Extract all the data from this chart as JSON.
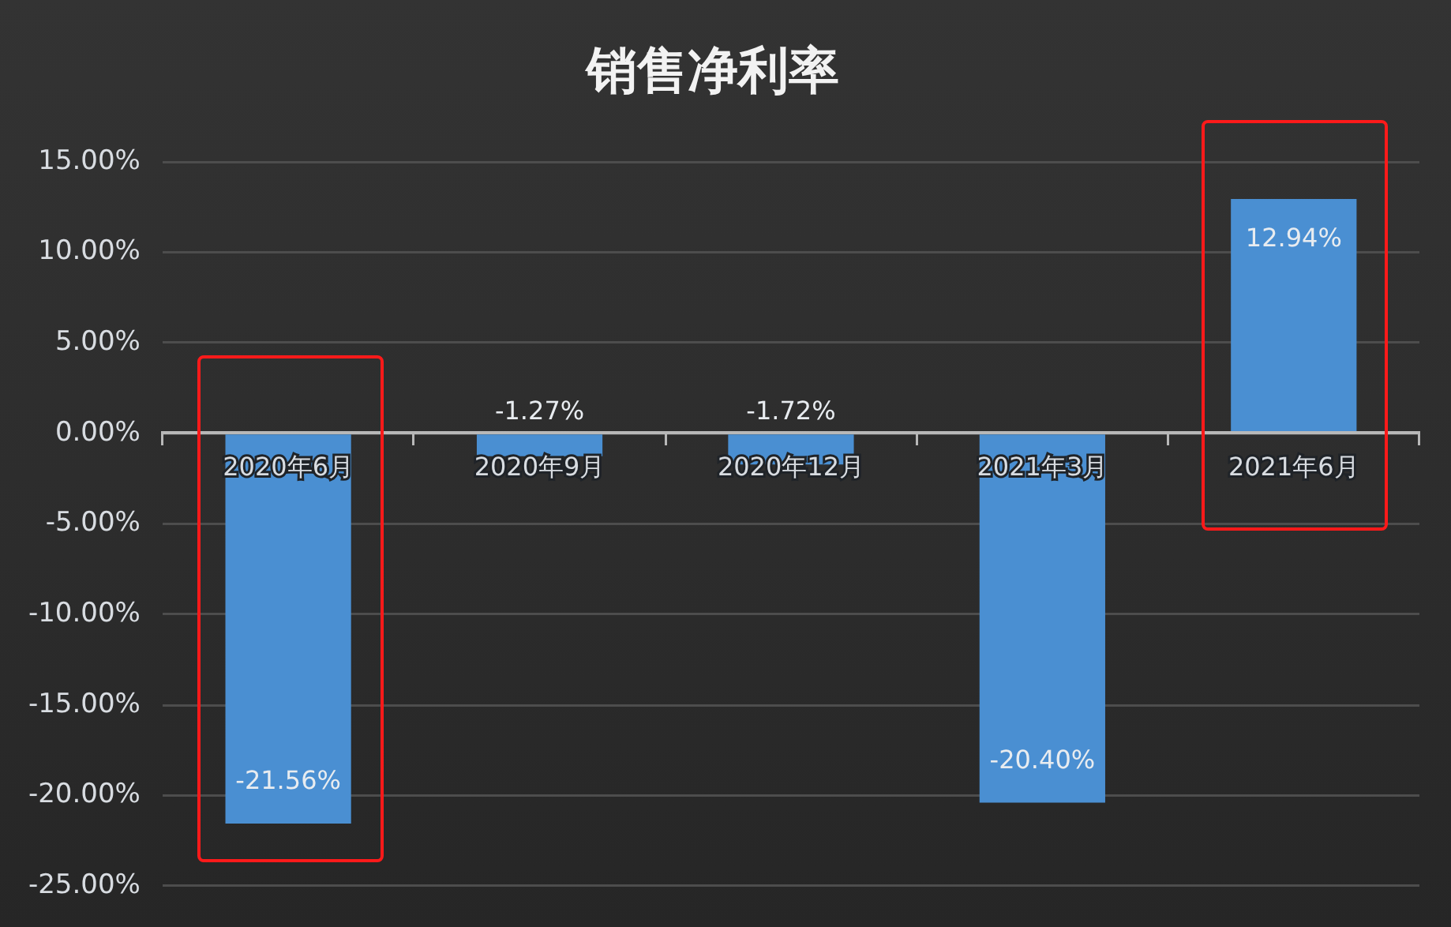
{
  "chart_data": {
    "type": "bar",
    "title": "销售净利率",
    "categories": [
      "2020年6月",
      "2020年9月",
      "2020年12月",
      "2021年3月",
      "2021年6月"
    ],
    "values": [
      -21.56,
      -1.27,
      -1.72,
      -20.4,
      12.94
    ],
    "value_labels": [
      "-21.56%",
      "-1.27%",
      "-1.72%",
      "-20.40%",
      "12.94%"
    ],
    "color": "#4a8fd2",
    "ylim": [
      -25,
      15
    ],
    "yticks": [
      {
        "value": -25,
        "label": "-25.00%"
      },
      {
        "value": -20,
        "label": "-20.00%"
      },
      {
        "value": -15,
        "label": "-15.00%"
      },
      {
        "value": -10,
        "label": "-10.00%"
      },
      {
        "value": -5,
        "label": "-5.00%"
      },
      {
        "value": 0,
        "label": "0.00%"
      },
      {
        "value": 5,
        "label": "5.00%"
      },
      {
        "value": 10,
        "label": "10.00%"
      },
      {
        "value": 15,
        "label": "15.00%"
      }
    ],
    "grid": "y",
    "legend": false
  }
}
